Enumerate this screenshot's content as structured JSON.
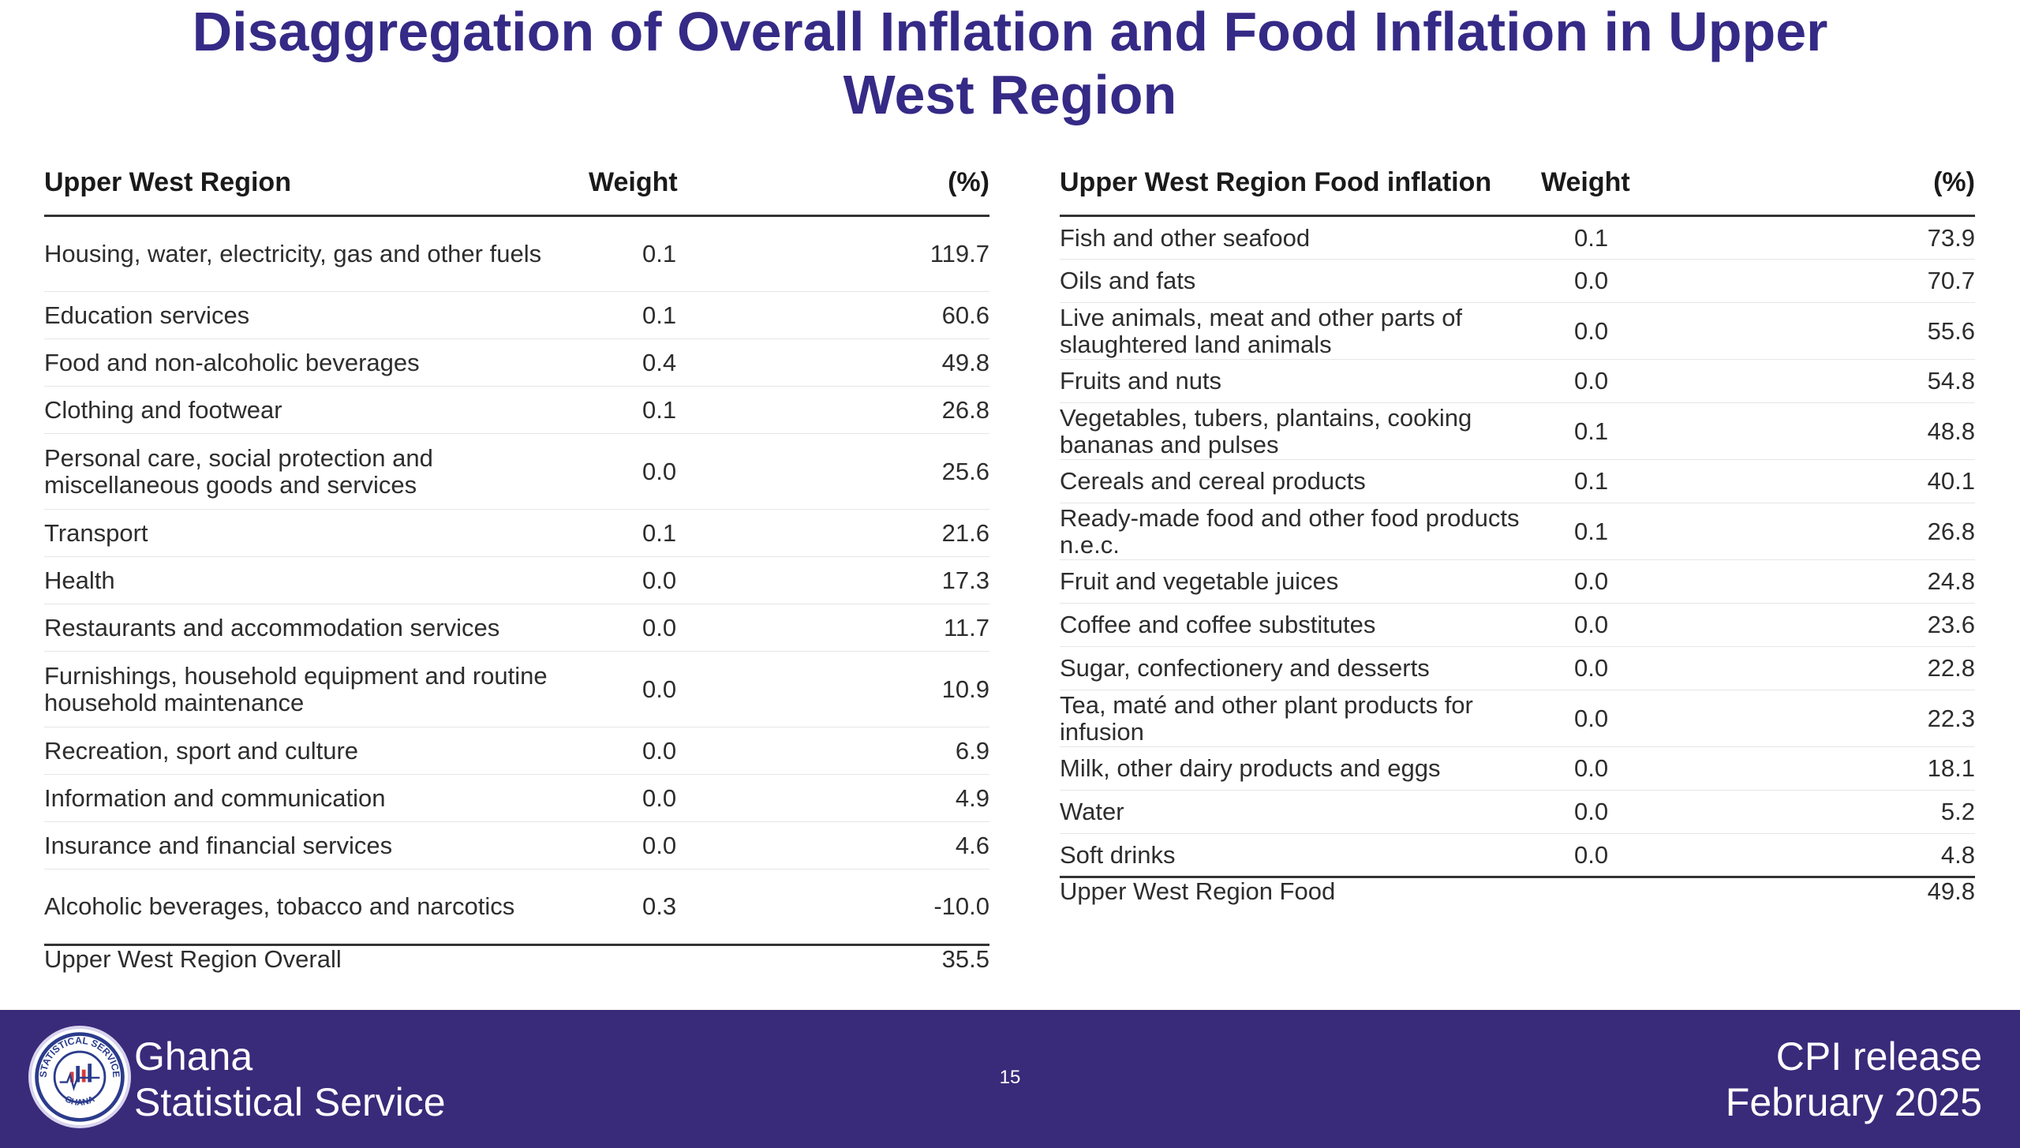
{
  "title": {
    "line1": "Disaggregation of Overall Inflation and Food Inflation in Upper",
    "line2": "West Region"
  },
  "left_table": {
    "headers": [
      "Upper West Region",
      "Weight",
      "(%)"
    ],
    "rows": [
      [
        "Housing, water, electricity, gas and other fuels",
        "0.1",
        "119.7"
      ],
      [
        "Education services",
        "0.1",
        "60.6"
      ],
      [
        "Food and non-alcoholic beverages",
        "0.4",
        "49.8"
      ],
      [
        "Clothing and footwear",
        "0.1",
        "26.8"
      ],
      [
        "Personal care, social protection and miscellaneous goods and services",
        "0.0",
        "25.6"
      ],
      [
        "Transport",
        "0.1",
        "21.6"
      ],
      [
        "Health",
        "0.0",
        "17.3"
      ],
      [
        "Restaurants and accommodation services",
        "0.0",
        "11.7"
      ],
      [
        "Furnishings, household equipment and routine household maintenance",
        "0.0",
        "10.9"
      ],
      [
        "Recreation, sport and culture",
        "0.0",
        "6.9"
      ],
      [
        "Information and communication",
        "0.0",
        "4.9"
      ],
      [
        "Insurance and financial services",
        "0.0",
        "4.6"
      ],
      [
        "Alcoholic beverages, tobacco and narcotics",
        "0.3",
        "-10.0"
      ]
    ],
    "total": [
      "Upper West Region Overall",
      "",
      "35.5"
    ]
  },
  "right_table": {
    "headers": [
      "Upper West Region Food inflation",
      "Weight",
      "(%)"
    ],
    "rows": [
      [
        "Fish and other seafood",
        "0.1",
        "73.9"
      ],
      [
        "Oils and fats",
        "0.0",
        "70.7"
      ],
      [
        "Live animals, meat and other parts of slaughtered land animals",
        "0.0",
        "55.6"
      ],
      [
        "Fruits and nuts",
        "0.0",
        "54.8"
      ],
      [
        "Vegetables, tubers, plantains, cooking bananas and pulses",
        "0.1",
        "48.8"
      ],
      [
        "Cereals and cereal products",
        "0.1",
        "40.1"
      ],
      [
        "Ready-made food and other food products n.e.c.",
        "0.1",
        "26.8"
      ],
      [
        "Fruit and vegetable juices",
        "0.0",
        "24.8"
      ],
      [
        "Coffee and coffee substitutes",
        "0.0",
        "23.6"
      ],
      [
        "Sugar, confectionery and desserts",
        "0.0",
        "22.8"
      ],
      [
        "Tea, maté and other plant products for infusion",
        "0.0",
        "22.3"
      ],
      [
        "Milk, other dairy products and eggs",
        "0.0",
        "18.1"
      ],
      [
        "Water",
        "0.0",
        "5.2"
      ],
      [
        "Soft drinks",
        "0.0",
        "4.8"
      ]
    ],
    "total": [
      "Upper West Region Food",
      "",
      "49.8"
    ]
  },
  "footer": {
    "org_line1": "Ghana",
    "org_line2": "Statistical Service",
    "logo_text_top": "STATISTICAL SERVICE",
    "logo_text_bottom": "GHANA",
    "page_number": "15",
    "release_line1": "CPI release",
    "release_line2": "February  2025",
    "bg_color": "#3a2a7a"
  },
  "colors": {
    "title": "#352a86"
  }
}
